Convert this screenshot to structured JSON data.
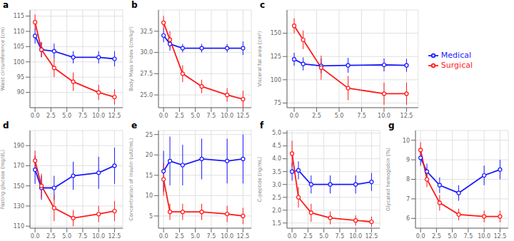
{
  "chart_data": [
    {
      "type": "line",
      "title": "a",
      "ylabel": "Waist circumference (cm)",
      "x": [
        0.0,
        1.0,
        3.0,
        6.0,
        10.0,
        12.5
      ],
      "xlim": [
        -0.8,
        13.8
      ],
      "xticks": [
        {
          "value": 0,
          "label": "0.0"
        },
        {
          "value": 2.5,
          "label": "2.5"
        },
        {
          "value": 5,
          "label": "5.0"
        },
        {
          "value": 7.5,
          "label": "7.5"
        },
        {
          "value": 10,
          "label": "10.0"
        },
        {
          "value": 12.5,
          "label": "12.5"
        }
      ],
      "ylim": [
        85,
        117
      ],
      "yticks": [
        90,
        95,
        100,
        105,
        110,
        115
      ],
      "grid": true,
      "series": [
        {
          "name": "Medical",
          "color": "#1a1aff",
          "marker": "circle",
          "values": [
            108.5,
            104.0,
            103.5,
            101.5,
            101.5,
            101.0
          ],
          "errors": [
            2.5,
            2.5,
            2.5,
            2.0,
            2.0,
            2.5
          ]
        },
        {
          "name": "Surgical",
          "color": "#ff1a1a",
          "marker": "circle",
          "values": [
            113.0,
            104.0,
            98.0,
            93.5,
            90.0,
            88.5
          ],
          "errors": [
            2.5,
            2.5,
            3.0,
            3.0,
            2.5,
            2.5
          ]
        }
      ]
    },
    {
      "type": "line",
      "title": "b",
      "ylabel": "Body Mass Index (cm/kg²)",
      "x": [
        0.0,
        1.0,
        3.0,
        6.0,
        10.0,
        12.5
      ],
      "xlim": [
        -0.8,
        13.8
      ],
      "xticks": [
        {
          "value": 0,
          "label": "0.0"
        },
        {
          "value": 2.5,
          "label": "2.5"
        },
        {
          "value": 5,
          "label": "5.0"
        },
        {
          "value": 7.5,
          "label": "7.5"
        },
        {
          "value": 10,
          "label": "10.0"
        },
        {
          "value": 12.5,
          "label": "12.5"
        }
      ],
      "ylim": [
        23.5,
        35
      ],
      "yticks": [
        {
          "value": 25,
          "label": "25.0"
        },
        27.5,
        {
          "value": 30,
          "label": "30.0"
        },
        32.5
      ],
      "grid": true,
      "series": [
        {
          "name": "Medical",
          "color": "#1a1aff",
          "marker": "circle",
          "values": [
            32.0,
            31.0,
            30.5,
            30.5,
            30.5,
            30.5
          ],
          "errors": [
            0.8,
            0.8,
            0.5,
            0.5,
            0.5,
            0.8
          ]
        },
        {
          "name": "Surgical",
          "color": "#ff1a1a",
          "marker": "circle",
          "values": [
            33.5,
            31.5,
            27.5,
            26.0,
            25.0,
            24.5
          ],
          "errors": [
            0.8,
            1.0,
            1.0,
            0.8,
            0.8,
            1.0
          ]
        }
      ]
    },
    {
      "type": "line",
      "title": "c",
      "ylabel": "Visceral fat area (cm²)",
      "x": [
        0.0,
        1.0,
        3.0,
        6.0,
        10.0,
        12.5
      ],
      "xlim": [
        -0.8,
        13.8
      ],
      "xticks": [
        {
          "value": 0,
          "label": "0.0"
        },
        {
          "value": 2.5,
          "label": "2.5"
        },
        {
          "value": 5,
          "label": "5.0"
        },
        {
          "value": 7.5,
          "label": "7.5"
        },
        {
          "value": 10,
          "label": "10.0"
        },
        {
          "value": 12.5,
          "label": "12.5"
        }
      ],
      "ylim": [
        70,
        175
      ],
      "yticks": [
        75,
        100,
        125,
        150
      ],
      "grid": true,
      "legend": "right",
      "series": [
        {
          "name": "Medical",
          "color": "#1a1aff",
          "marker": "circle",
          "values": [
            122.0,
            117.0,
            115.0,
            115.5,
            116.0,
            115.5
          ],
          "errors": [
            7.0,
            7.0,
            8.0,
            8.0,
            7.0,
            7.0
          ]
        },
        {
          "name": "Surgical",
          "color": "#ff1a1a",
          "marker": "circle",
          "values": [
            158.0,
            143.0,
            113.0,
            91.0,
            85.0,
            85.0
          ],
          "errors": [
            8.0,
            10.0,
            13.0,
            13.0,
            12.0,
            12.0
          ]
        }
      ]
    },
    {
      "type": "line",
      "title": "d",
      "ylabel": "Fasting glucose (mg/dL)",
      "x": [
        0.0,
        1.0,
        3.0,
        6.0,
        10.0,
        12.5
      ],
      "xlim": [
        -0.8,
        13.8
      ],
      "xticks": [
        {
          "value": 0,
          "label": "0.0"
        },
        {
          "value": 2.5,
          "label": "2.5"
        },
        {
          "value": 5,
          "label": "5.0"
        },
        {
          "value": 7.5,
          "label": "7.5"
        },
        {
          "value": 10,
          "label": "10.0"
        },
        {
          "value": 12.5,
          "label": "12.5"
        }
      ],
      "ylim": [
        108,
        205
      ],
      "yticks": [
        110,
        130,
        150,
        170,
        190
      ],
      "grid": true,
      "series": [
        {
          "name": "Medical",
          "color": "#1a1aff",
          "marker": "circle",
          "values": [
            166.0,
            148.0,
            148.0,
            160.0,
            163.0,
            170.0
          ],
          "errors": [
            14.0,
            12.0,
            12.0,
            14.0,
            16.0,
            18.0
          ]
        },
        {
          "name": "Surgical",
          "color": "#ff1a1a",
          "marker": "circle",
          "values": [
            175.0,
            150.0,
            128.0,
            118.0,
            122.0,
            125.0
          ],
          "errors": [
            10.0,
            12.0,
            13.0,
            8.0,
            8.0,
            10.0
          ]
        }
      ]
    },
    {
      "type": "line",
      "title": "e",
      "ylabel": "Concentration of insulin (uIU/mL)",
      "x": [
        0.0,
        1.0,
        3.0,
        6.0,
        10.0,
        12.5
      ],
      "xlim": [
        -0.8,
        13.8
      ],
      "xticks": [
        {
          "value": 0,
          "label": "0.0"
        },
        {
          "value": 2.5,
          "label": "2.5"
        },
        {
          "value": 5,
          "label": "5.0"
        },
        {
          "value": 7.5,
          "label": "7.5"
        },
        {
          "value": 10,
          "label": "10.0"
        },
        {
          "value": 12.5,
          "label": "12.5"
        }
      ],
      "ylim": [
        2,
        26
      ],
      "yticks": [
        5,
        10,
        15,
        20,
        25
      ],
      "grid": true,
      "series": [
        {
          "name": "Medical",
          "color": "#1a1aff",
          "marker": "circle",
          "values": [
            16.0,
            18.5,
            17.5,
            19.0,
            18.5,
            19.0
          ],
          "errors": [
            5.0,
            6.0,
            5.0,
            5.0,
            5.5,
            6.0
          ]
        },
        {
          "name": "Surgical",
          "color": "#ff1a1a",
          "marker": "circle",
          "values": [
            14.0,
            6.0,
            6.0,
            6.0,
            5.5,
            5.0
          ],
          "errors": [
            4.0,
            2.0,
            2.0,
            2.0,
            2.0,
            2.0
          ]
        }
      ]
    },
    {
      "type": "line",
      "title": "f",
      "ylabel": "C-peptide (ng/mL)",
      "x": [
        0.0,
        1.0,
        3.0,
        6.0,
        10.0,
        12.5
      ],
      "xlim": [
        -0.8,
        13.8
      ],
      "xticks": [
        {
          "value": 0,
          "label": "0.0"
        },
        {
          "value": 2.5,
          "label": "2.5"
        },
        {
          "value": 5,
          "label": "5.0"
        },
        {
          "value": 7.5,
          "label": "7.5"
        },
        {
          "value": 10,
          "label": "10.0"
        },
        {
          "value": 12.5,
          "label": "12.5"
        }
      ],
      "ylim": [
        1.3,
        5.1
      ],
      "yticks": [
        1.5,
        {
          "value": 2,
          "label": "2.0"
        },
        2.5,
        {
          "value": 3,
          "label": "3.0"
        },
        3.5,
        {
          "value": 4,
          "label": "4.0"
        },
        4.5,
        {
          "value": 5,
          "label": "5.0"
        }
      ],
      "grid": true,
      "series": [
        {
          "name": "Medical",
          "color": "#1a1aff",
          "marker": "circle",
          "values": [
            3.5,
            3.55,
            3.0,
            3.0,
            3.0,
            3.1
          ],
          "errors": [
            0.35,
            0.35,
            0.35,
            0.35,
            0.35,
            0.35
          ]
        },
        {
          "name": "Surgical",
          "color": "#ff1a1a",
          "marker": "circle",
          "values": [
            4.2,
            2.5,
            1.9,
            1.7,
            1.6,
            1.55
          ],
          "errors": [
            0.5,
            0.4,
            0.35,
            0.25,
            0.2,
            0.2
          ]
        }
      ]
    },
    {
      "type": "line",
      "title": "g",
      "ylabel": "Glycated hemoglobin (%)",
      "x": [
        0.0,
        1.0,
        3.0,
        6.0,
        10.0,
        12.5
      ],
      "xlim": [
        -0.8,
        13.8
      ],
      "xticks": [
        {
          "value": 0,
          "label": "0.0"
        },
        {
          "value": 2.5,
          "label": "2.5"
        },
        {
          "value": 5,
          "label": "5.0"
        },
        {
          "value": 7.5,
          "label": "7.5"
        },
        {
          "value": 10,
          "label": "10.0"
        },
        {
          "value": 12.5,
          "label": "12.5"
        }
      ],
      "ylim": [
        5.5,
        10.5
      ],
      "yticks": [
        6,
        7,
        8,
        9,
        10
      ],
      "grid": true,
      "series": [
        {
          "name": "Medical",
          "color": "#1a1aff",
          "marker": "circle",
          "values": [
            9.1,
            8.4,
            7.7,
            7.3,
            8.2,
            8.5
          ],
          "errors": [
            0.4,
            0.4,
            0.4,
            0.4,
            0.5,
            0.5
          ]
        },
        {
          "name": "Surgical",
          "color": "#ff1a1a",
          "marker": "circle",
          "values": [
            9.5,
            8.0,
            6.8,
            6.2,
            6.1,
            6.1
          ],
          "errors": [
            0.4,
            0.4,
            0.4,
            0.3,
            0.3,
            0.3
          ]
        }
      ]
    }
  ]
}
